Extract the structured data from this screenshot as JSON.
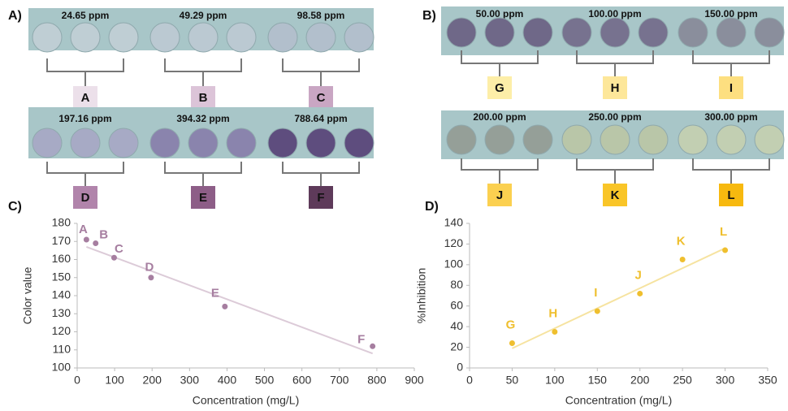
{
  "panels": [
    {
      "label": "A)",
      "strips": [
        {
          "groups": [
            {
              "concentration": "24.65 ppm",
              "letter": "A",
              "swatch": "#ece0ea",
              "well": "#bfced4"
            },
            {
              "concentration": "49.29 ppm",
              "letter": "B",
              "swatch": "#dcc4d8",
              "well": "#bbc9d2"
            },
            {
              "concentration": "98.58 ppm",
              "letter": "C",
              "swatch": "#c9a6c3",
              "well": "#b2bfcc"
            }
          ]
        },
        {
          "groups": [
            {
              "concentration": "197.16 ppm",
              "letter": "D",
              "swatch": "#b184ab",
              "well": "#a7aac5"
            },
            {
              "concentration": "394.32 ppm",
              "letter": "E",
              "swatch": "#8d5e87",
              "well": "#8a84ad"
            },
            {
              "concentration": "788.64 ppm",
              "letter": "F",
              "swatch": "#5e3a5a",
              "well": "#5e4d7e"
            }
          ]
        }
      ]
    },
    {
      "label": "B)",
      "strips": [
        {
          "groups": [
            {
              "concentration": "50.00 ppm",
              "letter": "G",
              "swatch": "#fdeea8",
              "well": "#6f6888"
            },
            {
              "concentration": "100.00 ppm",
              "letter": "H",
              "swatch": "#fde79a",
              "well": "#77728f"
            },
            {
              "concentration": "150.00 ppm",
              "letter": "I",
              "swatch": "#fddf80",
              "well": "#8a8e9c"
            }
          ]
        },
        {
          "groups": [
            {
              "concentration": "200.00 ppm",
              "letter": "J",
              "swatch": "#fbd050",
              "well": "#959f98"
            },
            {
              "concentration": "250.00 ppm",
              "letter": "K",
              "swatch": "#f9c528",
              "well": "#b9c6a8"
            },
            {
              "concentration": "300.00 ppm",
              "letter": "L",
              "swatch": "#f7b90f",
              "well": "#c2cfb2"
            }
          ]
        }
      ]
    }
  ],
  "chart_data": [
    {
      "type": "scatter",
      "panel_label": "C)",
      "x_label": "Concentration (mg/L)",
      "y_label": "Color value",
      "color": "#a67ea0",
      "trend_color": "#dccbd8",
      "x": [
        24.65,
        49.29,
        98.58,
        197.16,
        394.32,
        788.64
      ],
      "values": [
        171,
        169,
        161,
        150,
        134,
        112
      ],
      "point_labels": [
        "A",
        "B",
        "C",
        "D",
        "E",
        "F"
      ],
      "trendline": {
        "x": [
          24.65,
          788.64
        ],
        "y": [
          167,
          108
        ]
      },
      "xlim": [
        0,
        900
      ],
      "xticks": [
        0,
        100,
        200,
        300,
        400,
        500,
        600,
        700,
        800,
        900
      ],
      "ylim": [
        100,
        180
      ],
      "yticks": [
        100,
        110,
        120,
        130,
        140,
        150,
        160,
        170,
        180
      ]
    },
    {
      "type": "scatter",
      "panel_label": "D)",
      "x_label": "Concentration (mg/L)",
      "y_label": "%Inhibition",
      "color": "#efbf2e",
      "trend_color": "#f6e3a0",
      "x": [
        50,
        100,
        150,
        200,
        250,
        300
      ],
      "values": [
        24,
        35,
        55,
        72,
        105,
        114
      ],
      "point_labels": [
        "G",
        "H",
        "I",
        "J",
        "K",
        "L"
      ],
      "trendline": {
        "x": [
          50,
          300
        ],
        "y": [
          19,
          116
        ]
      },
      "xlim": [
        0,
        350
      ],
      "xticks": [
        0,
        50,
        100,
        150,
        200,
        250,
        300,
        350
      ],
      "ylim": [
        0,
        140
      ],
      "yticks": [
        0,
        20,
        40,
        60,
        80,
        100,
        120,
        140
      ]
    }
  ]
}
